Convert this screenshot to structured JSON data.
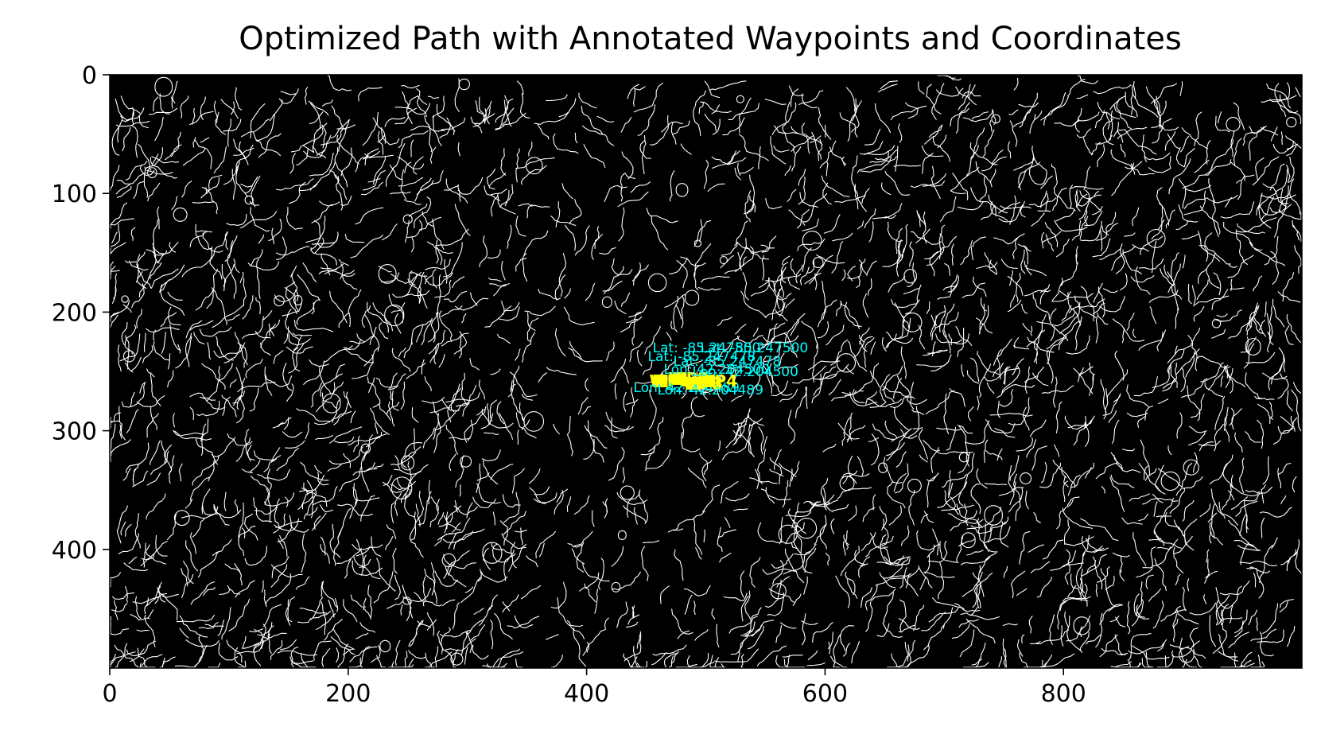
{
  "chart_data": {
    "type": "scatter",
    "title": "Optimized Path with Annotated Waypoints and Coordinates",
    "xlabel": "",
    "ylabel": "",
    "xlim": [
      0,
      1000
    ],
    "ylim": [
      500,
      0
    ],
    "x_ticks": [
      "0",
      "200",
      "400",
      "600",
      "800"
    ],
    "y_ticks": [
      "0",
      "100",
      "200",
      "300",
      "400"
    ],
    "background_color": "#000000",
    "edge_color": "#ffffff",
    "annotation_color": "#00ffff",
    "waypoint_label_color": "#ffff00",
    "path_color": "#1f4fff",
    "path": [
      {
        "x": 462,
        "y": 255
      },
      {
        "x": 478,
        "y": 258
      },
      {
        "x": 490,
        "y": 262
      },
      {
        "x": 502,
        "y": 258
      },
      {
        "x": 512,
        "y": 255
      }
    ],
    "waypoints": [
      {
        "name": "WP1",
        "x": 462,
        "y": 258,
        "lat": "Lat: -85.247500",
        "lon": "Lon: 42.204489"
      },
      {
        "name": "WP2",
        "x": 478,
        "y": 256,
        "lat": "Lat: -85.247478",
        "lon": "Lon: 42.204500"
      },
      {
        "name": "WP3",
        "x": 490,
        "y": 260,
        "lat": "Lat: -85.247478",
        "lon": "Lon: 42.204489"
      },
      {
        "name": "WP4",
        "x": 502,
        "y": 258,
        "lat": "Lat: -85.247500",
        "lon": "Lon: 42.204500"
      }
    ]
  }
}
